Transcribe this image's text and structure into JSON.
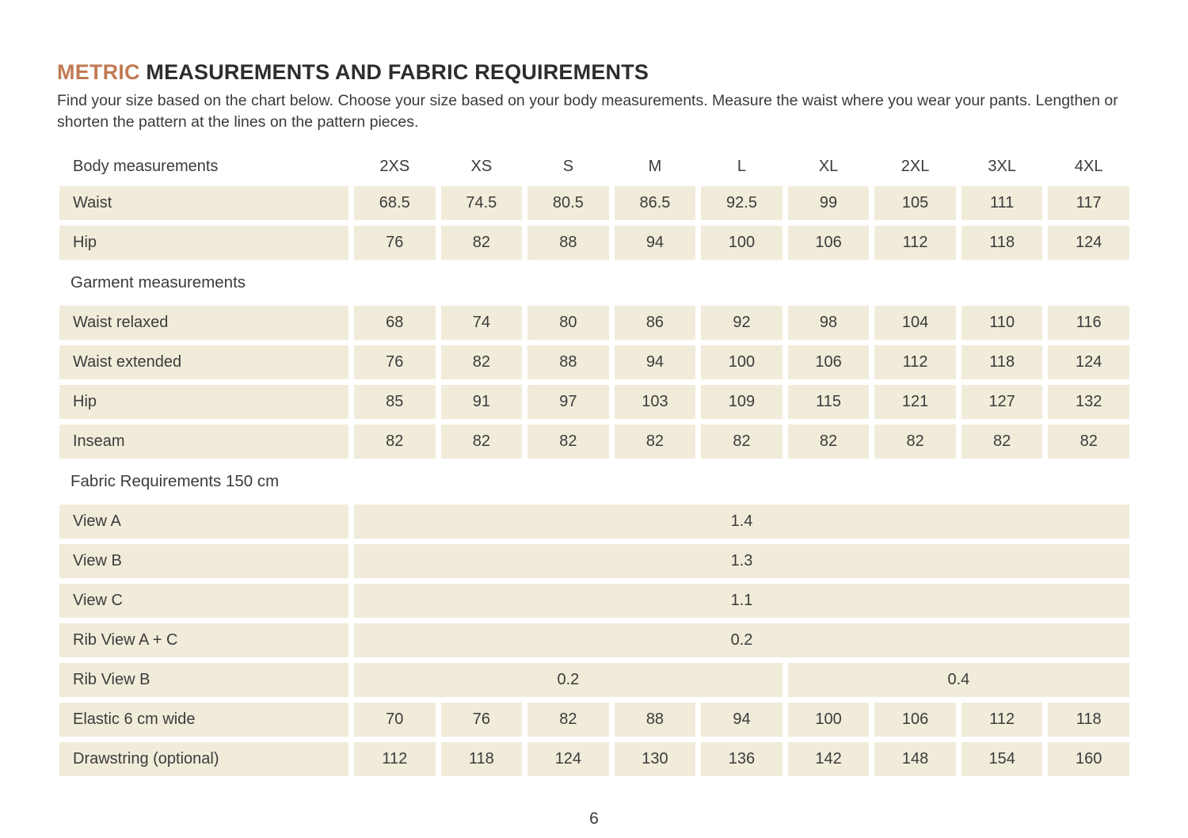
{
  "page": {
    "title": {
      "accent": "METRIC",
      "rest": " MEASUREMENTS AND FABRIC REQUIREMENTS"
    },
    "intro": "Find your size based on the chart below. Choose your size based on your body measurements. Measure the waist where you wear your pants. Lengthen or shorten the pattern at the lines on the pattern pieces.",
    "page_number": "6"
  },
  "colors": {
    "accent": "#c17b54",
    "cell_bg": "#f1ecda",
    "text": "#3b3b3b"
  },
  "table": {
    "sizes": [
      "2XS",
      "XS",
      "S",
      "M",
      "L",
      "XL",
      "2XL",
      "3XL",
      "4XL"
    ],
    "rows": [
      {
        "type": "header",
        "label": "Body measurements"
      },
      {
        "type": "values",
        "label": "Waist",
        "values": [
          "68.5",
          "74.5",
          "80.5",
          "86.5",
          "92.5",
          "99",
          "105",
          "111",
          "117"
        ]
      },
      {
        "type": "values",
        "label": "Hip",
        "values": [
          "76",
          "82",
          "88",
          "94",
          "100",
          "106",
          "112",
          "118",
          "124"
        ]
      },
      {
        "type": "section",
        "label": "Garment measurements"
      },
      {
        "type": "values",
        "label": "Waist relaxed",
        "values": [
          "68",
          "74",
          "80",
          "86",
          "92",
          "98",
          "104",
          "110",
          "116"
        ]
      },
      {
        "type": "values",
        "label": "Waist extended",
        "values": [
          "76",
          "82",
          "88",
          "94",
          "100",
          "106",
          "112",
          "118",
          "124"
        ]
      },
      {
        "type": "values",
        "label": "Hip",
        "values": [
          "85",
          "91",
          "97",
          "103",
          "109",
          "115",
          "121",
          "127",
          "132"
        ]
      },
      {
        "type": "values",
        "label": "Inseam",
        "values": [
          "82",
          "82",
          "82",
          "82",
          "82",
          "82",
          "82",
          "82",
          "82"
        ]
      },
      {
        "type": "section",
        "label": "Fabric Requirements 150 cm"
      },
      {
        "type": "merged",
        "label": "View A",
        "value": "1.4"
      },
      {
        "type": "merged",
        "label": "View B",
        "value": "1.3"
      },
      {
        "type": "merged",
        "label": "View C",
        "value": "1.1"
      },
      {
        "type": "merged",
        "label": "Rib View A + C",
        "value": "0.2"
      },
      {
        "type": "split",
        "label": "Rib View B",
        "segments": [
          {
            "span": 5,
            "value": "0.2"
          },
          {
            "span": 4,
            "value": "0.4"
          }
        ]
      },
      {
        "type": "values",
        "label": "Elastic 6 cm wide",
        "values": [
          "70",
          "76",
          "82",
          "88",
          "94",
          "100",
          "106",
          "112",
          "118"
        ]
      },
      {
        "type": "values",
        "label": "Drawstring (optional)",
        "values": [
          "112",
          "118",
          "124",
          "130",
          "136",
          "142",
          "148",
          "154",
          "160"
        ]
      }
    ]
  }
}
